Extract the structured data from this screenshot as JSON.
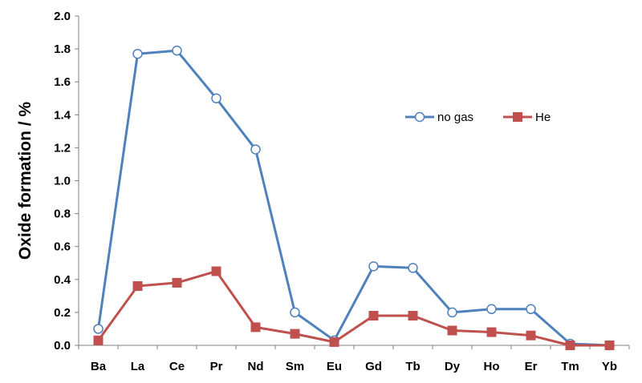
{
  "chart_data": {
    "type": "line",
    "title": "",
    "xlabel": "",
    "ylabel": "Oxide formation / %",
    "categories": [
      "Ba",
      "La",
      "Ce",
      "Pr",
      "Nd",
      "Sm",
      "Eu",
      "Gd",
      "Tb",
      "Dy",
      "Ho",
      "Er",
      "Tm",
      "Yb"
    ],
    "ylim": [
      0,
      2.0
    ],
    "yticks": [
      "0.0",
      "0.2",
      "0.4",
      "0.6",
      "0.8",
      "1.0",
      "1.2",
      "1.4",
      "1.6",
      "1.8",
      "2.0"
    ],
    "grid": false,
    "legend_position": "right",
    "series": [
      {
        "name": "no gas",
        "color": "#4F81BD",
        "marker": "open-circle",
        "values": [
          0.1,
          1.77,
          1.79,
          1.5,
          1.19,
          0.2,
          0.03,
          0.48,
          0.47,
          0.2,
          0.22,
          0.22,
          0.01,
          0.0
        ]
      },
      {
        "name": "He",
        "color": "#C0504D",
        "marker": "filled-square",
        "values": [
          0.03,
          0.36,
          0.38,
          0.45,
          0.11,
          0.07,
          0.02,
          0.18,
          0.18,
          0.09,
          0.08,
          0.06,
          0.0,
          0.0
        ]
      }
    ]
  }
}
